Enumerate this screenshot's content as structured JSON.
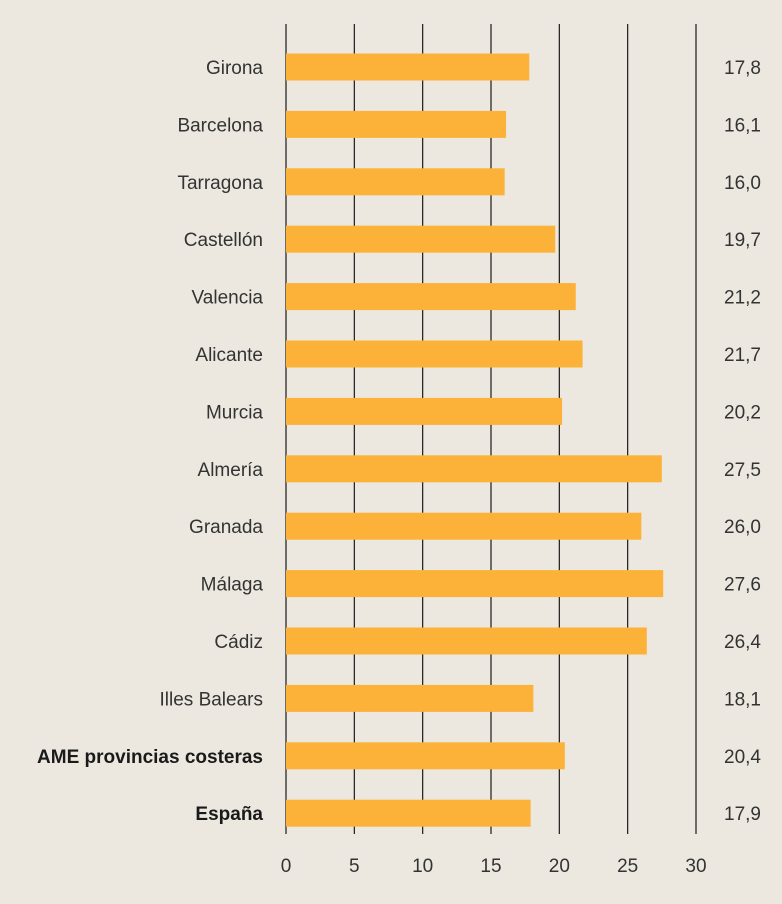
{
  "chart_data": {
    "type": "bar",
    "orientation": "horizontal",
    "categories": [
      "Girona",
      "Barcelona",
      "Tarragona",
      "Castellón",
      "Valencia",
      "Alicante",
      "Murcia",
      "Almería",
      "Granada",
      "Málaga",
      "Cádiz",
      "Illes Balears",
      "AME provincias costeras",
      "España"
    ],
    "bold_categories": [
      "AME provincias costeras",
      "España"
    ],
    "values": [
      17.8,
      16.1,
      16.0,
      19.7,
      21.2,
      21.7,
      20.2,
      27.5,
      26.0,
      27.6,
      26.4,
      18.1,
      20.4,
      17.9
    ],
    "value_labels": [
      "17,8",
      "16,1",
      "16,0",
      "19,7",
      "21,2",
      "21,7",
      "20,2",
      "27,5",
      "26,0",
      "27,6",
      "26,4",
      "18,1",
      "20,4",
      "17,9"
    ],
    "xlim": [
      0,
      30
    ],
    "x_ticks": [
      0,
      5,
      10,
      15,
      20,
      25,
      30
    ],
    "x_tick_labels": [
      "0",
      "5",
      "10",
      "15",
      "20",
      "25",
      "30"
    ],
    "grid": "vertical",
    "title": "",
    "xlabel": "",
    "ylabel": "",
    "colors": {
      "bar": "#FCB138",
      "background": "#ECE8DF",
      "grid": "#1a1a1a",
      "text": "#333333"
    }
  }
}
